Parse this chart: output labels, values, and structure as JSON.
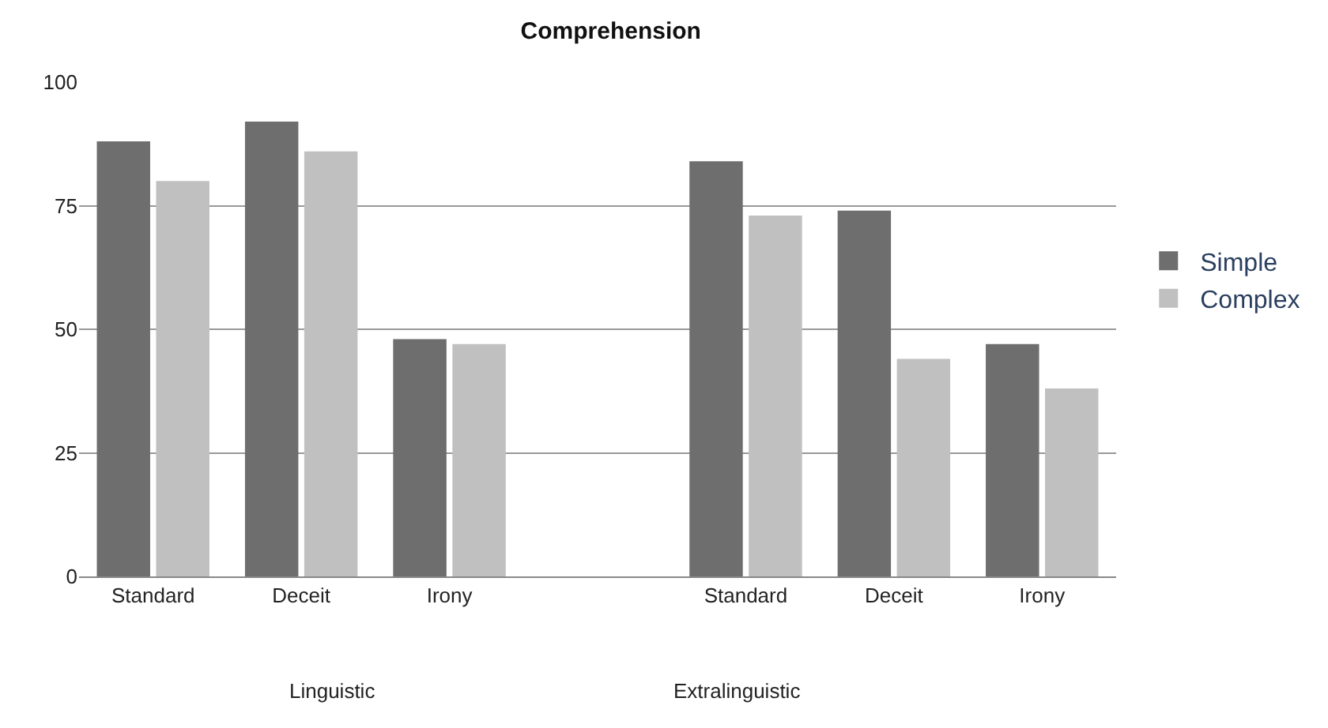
{
  "chart_data": {
    "type": "bar",
    "title": "Comprehension",
    "categories": [
      "Standard",
      "Deceit",
      "Irony",
      null,
      "Standard",
      "Deceit",
      "Irony"
    ],
    "series": [
      {
        "name": "Simple",
        "color": "#6e6e6e",
        "values": [
          88,
          92,
          48,
          null,
          84,
          74,
          47
        ]
      },
      {
        "name": "Complex",
        "color": "#c0c0c0",
        "values": [
          80,
          86,
          47,
          null,
          73,
          44,
          38
        ]
      }
    ],
    "ylim": [
      0,
      100
    ],
    "yticks": [
      0,
      25,
      50,
      75,
      100
    ],
    "grid": "y",
    "legend": "right",
    "annotations": [
      "Linguistic",
      "Extralinguistic"
    ]
  }
}
